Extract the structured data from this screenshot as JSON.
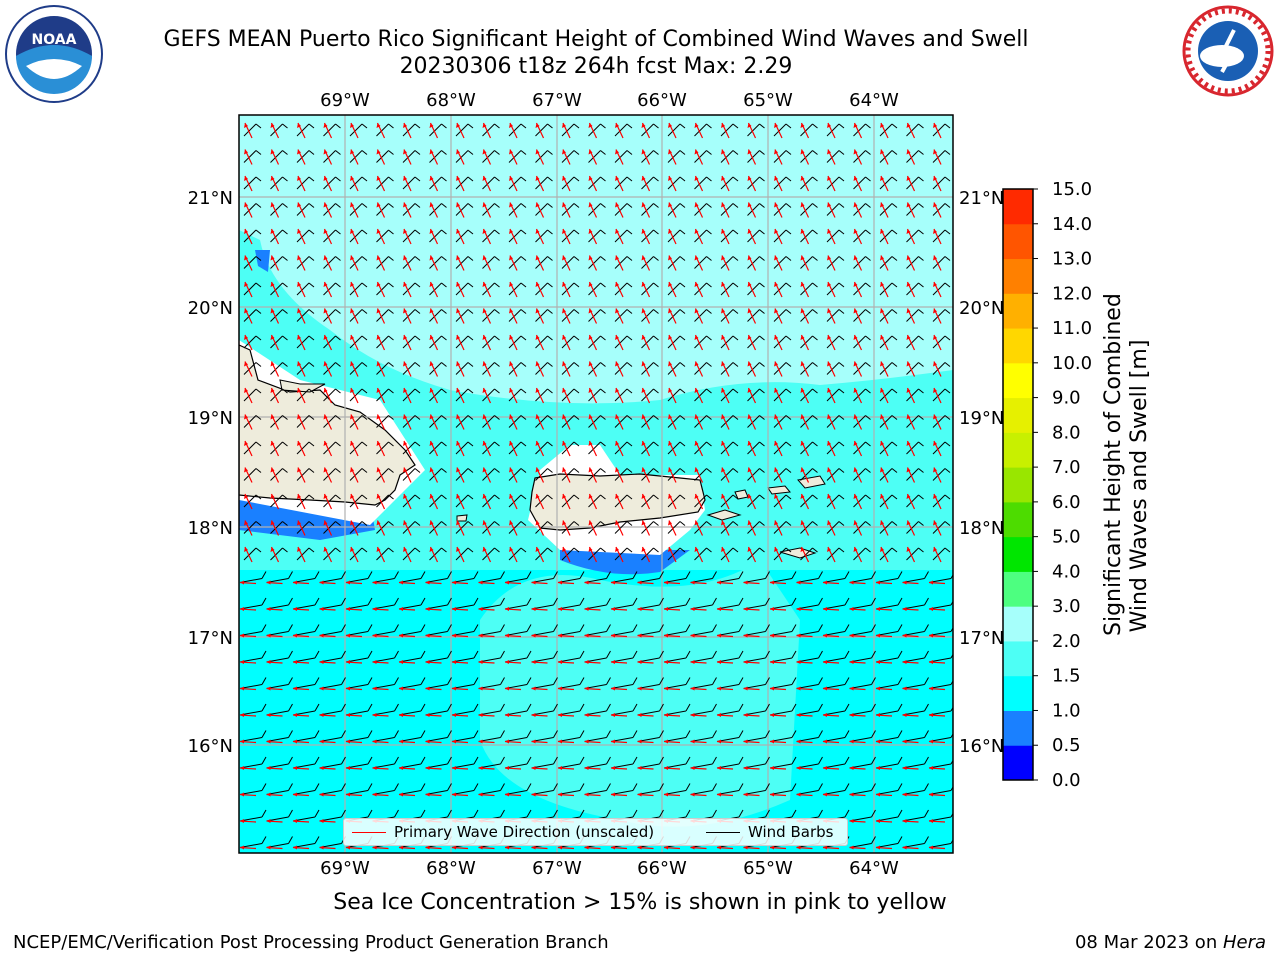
{
  "header": {
    "title_line1": "GEFS MEAN Puerto Rico Significant Height of Combined Wind Waves and Swell",
    "title_line2": "20230306 t18z 264h fcst   Max: 2.29"
  },
  "logos": {
    "left": {
      "icon": "noaa-logo",
      "text": "NOAA"
    },
    "right": {
      "icon": "national-weather-service-logo",
      "text": "NATIONAL WEATHER SERVICE"
    }
  },
  "map": {
    "lon_labels": [
      "69°W",
      "68°W",
      "67°W",
      "66°W",
      "65°W",
      "64°W"
    ],
    "lat_labels": [
      "21°N",
      "20°N",
      "19°N",
      "18°N",
      "17°N",
      "16°N"
    ],
    "colors": {
      "ocean_light": "#a6fffb",
      "ocean_mid": "#4dfff5",
      "ocean_cyan": "#00ffff",
      "shallow_blue": "#1a80ff",
      "land": "#eeecdc",
      "wave_arrow": "#ff0000",
      "wind_barb": "#000000",
      "grid": "#b0b0b0"
    },
    "legend": {
      "wave_direction": "Primary Wave Direction (unscaled)",
      "wind_barbs": "Wind Barbs"
    }
  },
  "colorbar": {
    "label_line1": "Significant Height of Combined",
    "label_line2": "Wind Waves and Swell [m]",
    "tick_labels": [
      "15.0",
      "14.0",
      "13.0",
      "12.0",
      "11.0",
      "10.0",
      "9.0",
      "8.0",
      "7.0",
      "6.0",
      "5.0",
      "4.0",
      "3.0",
      "2.0",
      "1.5",
      "1.0",
      "0.5",
      "0.0"
    ],
    "levels": [
      0.0,
      0.5,
      1.0,
      1.5,
      2.0,
      3.0,
      4.0,
      5.0,
      6.0,
      7.0,
      8.0,
      9.0,
      10.0,
      11.0,
      12.0,
      13.0,
      14.0,
      15.0
    ],
    "colors": [
      "#0000ff",
      "#1a80ff",
      "#00ffff",
      "#4dfff5",
      "#a6fffb",
      "#4dff80",
      "#00e600",
      "#4ddc00",
      "#99e600",
      "#c8f000",
      "#e6f000",
      "#ffff00",
      "#ffd700",
      "#ffb000",
      "#ff8000",
      "#ff5500",
      "#ff2a00"
    ]
  },
  "footnote": "Sea Ice Concentration > 15% is shown in pink to yellow",
  "footer": {
    "left": "NCEP/EMC/Verification Post Processing Product Generation Branch",
    "right_prefix": "08 Mar 2023 on ",
    "right_host": "Hera"
  }
}
